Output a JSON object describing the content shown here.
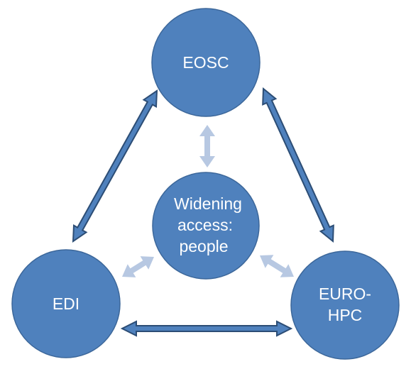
{
  "nodes": {
    "eosc": {
      "label": "EOSC"
    },
    "edi": {
      "label": "EDI"
    },
    "euro_hpc": {
      "line1": "EURO-",
      "line2": "HPC"
    },
    "center": {
      "line1": "Widening",
      "line2": "access:",
      "line3": "people"
    }
  },
  "colors": {
    "node_fill": "#4f81bd",
    "node_stroke": "#3c679a",
    "arrow_dark_fill": "#4f81bd",
    "arrow_dark_stroke": "#2c4d75",
    "arrow_light_fill": "#b7c8e2"
  }
}
